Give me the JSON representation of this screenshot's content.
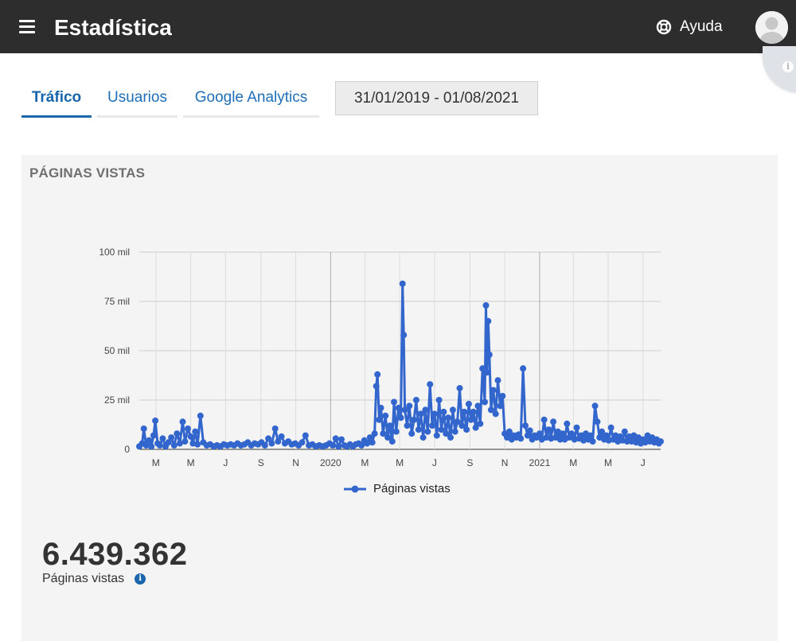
{
  "app": {
    "title": "Estadística"
  },
  "header": {
    "menu_icon": "hamburger-menu-icon",
    "help_icon": "lifebuoy-icon",
    "help_label": "Ayuda",
    "avatar_icon": "user-avatar-icon",
    "info_icon": "info-icon"
  },
  "tabs": [
    {
      "label": "Tráfico",
      "active": true
    },
    {
      "label": "Usuarios",
      "active": false
    },
    {
      "label": "Google Analytics",
      "active": false
    }
  ],
  "date_range": "31/01/2019 - 01/08/2021",
  "panel": {
    "title": "PÁGINAS VISTAS",
    "total_value": "6.439.362",
    "total_label": "Páginas vistas",
    "total_info_icon": "info-icon"
  },
  "colors": {
    "topbar": "#2d2d2d",
    "accent": "#1a66ad",
    "series": "#3366cc",
    "panel_bg": "#f4f4f4"
  },
  "chart_data": {
    "type": "line",
    "title": "",
    "xlabel": "",
    "ylabel": "",
    "ylim": [
      0,
      100000
    ],
    "y_ticks": [
      0,
      25000,
      50000,
      75000,
      100000
    ],
    "y_tick_labels": [
      "0",
      "25 mil",
      "50 mil",
      "75 mil",
      "100 mil"
    ],
    "x_range": [
      "2019-01-31",
      "2021-08-01"
    ],
    "x_ticks": [
      {
        "date": "2019-03-01",
        "label": "M"
      },
      {
        "date": "2019-05-01",
        "label": "M"
      },
      {
        "date": "2019-07-01",
        "label": "J"
      },
      {
        "date": "2019-09-01",
        "label": "S"
      },
      {
        "date": "2019-11-01",
        "label": "N"
      },
      {
        "date": "2020-01-01",
        "label": "2020"
      },
      {
        "date": "2020-03-01",
        "label": "M"
      },
      {
        "date": "2020-05-01",
        "label": "M"
      },
      {
        "date": "2020-07-01",
        "label": "J"
      },
      {
        "date": "2020-09-01",
        "label": "S"
      },
      {
        "date": "2020-11-01",
        "label": "N"
      },
      {
        "date": "2021-01-01",
        "label": "2021"
      },
      {
        "date": "2021-03-01",
        "label": "M"
      },
      {
        "date": "2021-05-01",
        "label": "M"
      },
      {
        "date": "2021-07-01",
        "label": "J"
      }
    ],
    "legend": {
      "position": "bottom",
      "entries": [
        "Páginas vistas"
      ]
    },
    "grid": true,
    "series": [
      {
        "name": "Páginas vistas",
        "points": [
          [
            "2019-01-31",
            1500
          ],
          [
            "2019-02-05",
            3000
          ],
          [
            "2019-02-08",
            10500
          ],
          [
            "2019-02-12",
            2000
          ],
          [
            "2019-02-17",
            4500
          ],
          [
            "2019-02-21",
            1500
          ],
          [
            "2019-02-25",
            7000
          ],
          [
            "2019-02-28",
            14500
          ],
          [
            "2019-03-04",
            3000
          ],
          [
            "2019-03-08",
            2000
          ],
          [
            "2019-03-13",
            5500
          ],
          [
            "2019-03-18",
            1500
          ],
          [
            "2019-03-23",
            3500
          ],
          [
            "2019-03-28",
            6000
          ],
          [
            "2019-04-02",
            2000
          ],
          [
            "2019-04-07",
            8000
          ],
          [
            "2019-04-12",
            3000
          ],
          [
            "2019-04-17",
            14000
          ],
          [
            "2019-04-21",
            4000
          ],
          [
            "2019-04-26",
            10500
          ],
          [
            "2019-05-01",
            6500
          ],
          [
            "2019-05-05",
            3000
          ],
          [
            "2019-05-09",
            9000
          ],
          [
            "2019-05-13",
            2500
          ],
          [
            "2019-05-18",
            17000
          ],
          [
            "2019-05-23",
            3500
          ],
          [
            "2019-05-29",
            2000
          ],
          [
            "2019-06-04",
            2500
          ],
          [
            "2019-06-10",
            1500
          ],
          [
            "2019-06-16",
            2000
          ],
          [
            "2019-06-22",
            1500
          ],
          [
            "2019-06-28",
            2500
          ],
          [
            "2019-07-04",
            2000
          ],
          [
            "2019-07-10",
            2500
          ],
          [
            "2019-07-16",
            2000
          ],
          [
            "2019-07-22",
            3000
          ],
          [
            "2019-07-28",
            2000
          ],
          [
            "2019-08-03",
            2500
          ],
          [
            "2019-08-09",
            3500
          ],
          [
            "2019-08-15",
            2000
          ],
          [
            "2019-08-21",
            3000
          ],
          [
            "2019-08-27",
            2500
          ],
          [
            "2019-09-02",
            3500
          ],
          [
            "2019-09-08",
            2000
          ],
          [
            "2019-09-14",
            5500
          ],
          [
            "2019-09-20",
            3000
          ],
          [
            "2019-09-26",
            10500
          ],
          [
            "2019-10-01",
            4000
          ],
          [
            "2019-10-07",
            6500
          ],
          [
            "2019-10-13",
            3000
          ],
          [
            "2019-10-19",
            4000
          ],
          [
            "2019-10-25",
            2500
          ],
          [
            "2019-10-31",
            3000
          ],
          [
            "2019-11-06",
            2000
          ],
          [
            "2019-11-12",
            3500
          ],
          [
            "2019-11-18",
            7000
          ],
          [
            "2019-11-24",
            2000
          ],
          [
            "2019-11-30",
            2500
          ],
          [
            "2019-12-06",
            1500
          ],
          [
            "2019-12-12",
            2000
          ],
          [
            "2019-12-18",
            1500
          ],
          [
            "2019-12-24",
            2000
          ],
          [
            "2019-12-30",
            3000
          ],
          [
            "2020-01-05",
            2000
          ],
          [
            "2020-01-10",
            5500
          ],
          [
            "2020-01-15",
            1500
          ],
          [
            "2020-01-20",
            5000
          ],
          [
            "2020-01-25",
            2000
          ],
          [
            "2020-01-30",
            1500
          ],
          [
            "2020-02-04",
            2500
          ],
          [
            "2020-02-09",
            1500
          ],
          [
            "2020-02-14",
            2500
          ],
          [
            "2020-02-19",
            3000
          ],
          [
            "2020-02-24",
            2000
          ],
          [
            "2020-02-29",
            4500
          ],
          [
            "2020-03-05",
            3000
          ],
          [
            "2020-03-10",
            6000
          ],
          [
            "2020-03-14",
            3500
          ],
          [
            "2020-03-18",
            8000
          ],
          [
            "2020-03-21",
            32000
          ],
          [
            "2020-03-23",
            38000
          ],
          [
            "2020-03-26",
            15000
          ],
          [
            "2020-03-29",
            21000
          ],
          [
            "2020-04-02",
            8000
          ],
          [
            "2020-04-06",
            17000
          ],
          [
            "2020-04-10",
            6000
          ],
          [
            "2020-04-14",
            12000
          ],
          [
            "2020-04-18",
            4000
          ],
          [
            "2020-04-21",
            24000
          ],
          [
            "2020-04-25",
            9000
          ],
          [
            "2020-04-29",
            21000
          ],
          [
            "2020-05-03",
            16000
          ],
          [
            "2020-05-06",
            84000
          ],
          [
            "2020-05-08",
            58000
          ],
          [
            "2020-05-10",
            20000
          ],
          [
            "2020-05-14",
            12000
          ],
          [
            "2020-05-18",
            22000
          ],
          [
            "2020-05-22",
            8000
          ],
          [
            "2020-05-26",
            15000
          ],
          [
            "2020-05-30",
            25000
          ],
          [
            "2020-06-03",
            10000
          ],
          [
            "2020-06-07",
            18000
          ],
          [
            "2020-06-11",
            6000
          ],
          [
            "2020-06-15",
            20000
          ],
          [
            "2020-06-19",
            9000
          ],
          [
            "2020-06-23",
            33000
          ],
          [
            "2020-06-27",
            12000
          ],
          [
            "2020-07-01",
            18000
          ],
          [
            "2020-07-05",
            7000
          ],
          [
            "2020-07-09",
            25000
          ],
          [
            "2020-07-13",
            10000
          ],
          [
            "2020-07-17",
            19000
          ],
          [
            "2020-07-21",
            8000
          ],
          [
            "2020-07-25",
            16000
          ],
          [
            "2020-07-29",
            6000
          ],
          [
            "2020-08-02",
            20000
          ],
          [
            "2020-08-06",
            9000
          ],
          [
            "2020-08-10",
            14000
          ],
          [
            "2020-08-14",
            31000
          ],
          [
            "2020-08-18",
            12000
          ],
          [
            "2020-08-22",
            19000
          ],
          [
            "2020-08-26",
            10000
          ],
          [
            "2020-08-30",
            23000
          ],
          [
            "2020-09-03",
            15000
          ],
          [
            "2020-09-07",
            19000
          ],
          [
            "2020-09-11",
            11000
          ],
          [
            "2020-09-15",
            22000
          ],
          [
            "2020-09-19",
            13000
          ],
          [
            "2020-09-23",
            41000
          ],
          [
            "2020-09-27",
            24000
          ],
          [
            "2020-09-29",
            73000
          ],
          [
            "2020-10-01",
            39000
          ],
          [
            "2020-10-03",
            65000
          ],
          [
            "2020-10-05",
            48000
          ],
          [
            "2020-10-08",
            20000
          ],
          [
            "2020-10-12",
            30000
          ],
          [
            "2020-10-16",
            18000
          ],
          [
            "2020-10-20",
            35000
          ],
          [
            "2020-10-24",
            22000
          ],
          [
            "2020-10-28",
            27000
          ],
          [
            "2020-11-01",
            8000
          ],
          [
            "2020-11-05",
            6000
          ],
          [
            "2020-11-09",
            9000
          ],
          [
            "2020-11-13",
            5000
          ],
          [
            "2020-11-17",
            7000
          ],
          [
            "2020-11-21",
            6000
          ],
          [
            "2020-11-25",
            7500
          ],
          [
            "2020-11-29",
            5500
          ],
          [
            "2020-12-03",
            41000
          ],
          [
            "2020-12-07",
            12000
          ],
          [
            "2020-12-11",
            7000
          ],
          [
            "2020-12-15",
            9500
          ],
          [
            "2020-12-19",
            5000
          ],
          [
            "2020-12-23",
            7000
          ],
          [
            "2020-12-27",
            6000
          ],
          [
            "2021-01-01",
            8000
          ],
          [
            "2021-01-05",
            5000
          ],
          [
            "2021-01-09",
            15000
          ],
          [
            "2021-01-13",
            6000
          ],
          [
            "2021-01-17",
            10000
          ],
          [
            "2021-01-21",
            5500
          ],
          [
            "2021-01-25",
            14000
          ],
          [
            "2021-01-29",
            6000
          ],
          [
            "2021-02-02",
            9000
          ],
          [
            "2021-02-06",
            5000
          ],
          [
            "2021-02-10",
            8000
          ],
          [
            "2021-02-14",
            5000
          ],
          [
            "2021-02-18",
            13000
          ],
          [
            "2021-02-22",
            6000
          ],
          [
            "2021-02-26",
            8000
          ],
          [
            "2021-03-03",
            5000
          ],
          [
            "2021-03-07",
            11000
          ],
          [
            "2021-03-11",
            5500
          ],
          [
            "2021-03-15",
            7000
          ],
          [
            "2021-03-19",
            4500
          ],
          [
            "2021-03-23",
            8000
          ],
          [
            "2021-03-27",
            5000
          ],
          [
            "2021-03-31",
            7000
          ],
          [
            "2021-04-04",
            4000
          ],
          [
            "2021-04-08",
            22000
          ],
          [
            "2021-04-12",
            14000
          ],
          [
            "2021-04-16",
            6000
          ],
          [
            "2021-04-20",
            9000
          ],
          [
            "2021-04-24",
            5000
          ],
          [
            "2021-04-28",
            7000
          ],
          [
            "2021-05-02",
            4500
          ],
          [
            "2021-05-06",
            11000
          ],
          [
            "2021-05-10",
            5000
          ],
          [
            "2021-05-14",
            7000
          ],
          [
            "2021-05-18",
            4000
          ],
          [
            "2021-05-22",
            6500
          ],
          [
            "2021-05-26",
            4500
          ],
          [
            "2021-05-30",
            9000
          ],
          [
            "2021-06-03",
            4000
          ],
          [
            "2021-06-07",
            6500
          ],
          [
            "2021-06-11",
            4000
          ],
          [
            "2021-06-15",
            7000
          ],
          [
            "2021-06-19",
            3500
          ],
          [
            "2021-06-23",
            6000
          ],
          [
            "2021-06-27",
            3000
          ],
          [
            "2021-07-01",
            5000
          ],
          [
            "2021-07-05",
            3500
          ],
          [
            "2021-07-09",
            7000
          ],
          [
            "2021-07-13",
            4000
          ],
          [
            "2021-07-17",
            6000
          ],
          [
            "2021-07-21",
            3500
          ],
          [
            "2021-07-25",
            5000
          ],
          [
            "2021-07-29",
            3000
          ],
          [
            "2021-08-01",
            4000
          ]
        ]
      }
    ]
  }
}
